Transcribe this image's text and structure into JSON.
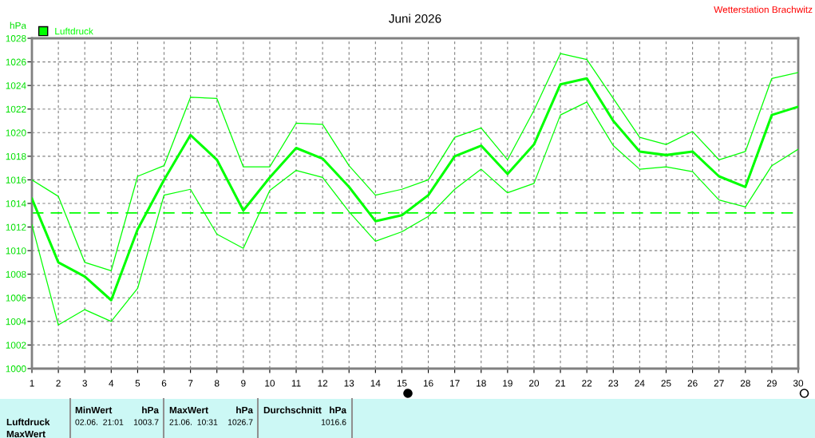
{
  "chart_data": {
    "type": "line",
    "title": "Juni 2026",
    "ylabel": "hPa",
    "x": [
      1,
      2,
      3,
      4,
      5,
      6,
      7,
      8,
      9,
      10,
      11,
      12,
      13,
      14,
      15,
      16,
      17,
      18,
      19,
      20,
      21,
      22,
      23,
      24,
      25,
      26,
      27,
      28,
      29,
      30
    ],
    "series": [
      {
        "name": "Luftdruck",
        "color": "#00ff00",
        "values": [
          1014.4,
          1009.0,
          1007.8,
          1005.8,
          1011.8,
          1016.0,
          1019.8,
          1017.7,
          1013.4,
          1016.2,
          1018.7,
          1017.8,
          1015.4,
          1012.5,
          1013.0,
          1014.7,
          1018.0,
          1018.9,
          1016.5,
          1019.0,
          1024.1,
          1024.6,
          1021.0,
          1018.4,
          1018.1,
          1018.4,
          1016.3,
          1015.4,
          1021.5,
          1022.2
        ]
      },
      {
        "color": "#00ff00",
        "values": [
          1016.0,
          1014.6,
          1009.0,
          1008.3,
          1016.3,
          1017.2,
          1023.0,
          1022.9,
          1017.1,
          1017.1,
          1020.8,
          1020.7,
          1017.2,
          1014.7,
          1015.2,
          1016.0,
          1019.6,
          1020.4,
          1017.7,
          1021.9,
          1026.7,
          1026.2,
          1022.9,
          1019.6,
          1019.0,
          1020.1,
          1017.7,
          1018.4,
          1024.6,
          1025.1
        ]
      },
      {
        "color": "#00ff00",
        "values": [
          1012.2,
          1003.7,
          1005.0,
          1004.0,
          1006.8,
          1014.7,
          1015.2,
          1011.4,
          1010.2,
          1015.1,
          1016.8,
          1016.2,
          1013.3,
          1010.8,
          1011.6,
          1012.9,
          1015.2,
          1016.9,
          1014.9,
          1015.7,
          1021.5,
          1022.6,
          1018.9,
          1016.9,
          1017.1,
          1016.7,
          1014.3,
          1013.7,
          1017.2,
          1018.6
        ]
      }
    ],
    "xlim": [
      1,
      30
    ],
    "xticks": [
      1,
      2,
      3,
      4,
      5,
      6,
      7,
      8,
      9,
      10,
      11,
      12,
      13,
      14,
      15,
      16,
      17,
      18,
      19,
      20,
      21,
      22,
      23,
      24,
      25,
      26,
      27,
      28,
      29,
      30
    ],
    "ylim": [
      1000,
      1028
    ],
    "yticks": [
      1000,
      1002,
      1004,
      1006,
      1008,
      1010,
      1012,
      1014,
      1016,
      1018,
      1020,
      1022,
      1024,
      1026,
      1028
    ],
    "ref_lines": [
      {
        "axis": "y",
        "value": 1013.2,
        "color": "#00ff00",
        "line_style": "dashed"
      }
    ],
    "grid": true,
    "legend": "top left",
    "marker": "none",
    "line_style": "solid",
    "annotations": [
      "Wetterstation Brachwitz",
      "Luftdruck",
      "MaxWert",
      "MinWert",
      "hPa",
      "02.06.  21:01",
      "1003.7",
      "MaxWert",
      "hPa",
      "21.06.  10:31",
      "1026.7",
      "Durchschnitt",
      "hPa",
      "1016.6"
    ]
  }
}
